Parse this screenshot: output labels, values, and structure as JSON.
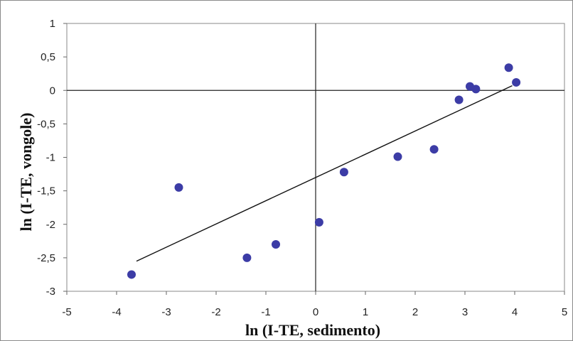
{
  "chart_data": {
    "type": "scatter",
    "title": "",
    "xlabel": "ln (I-TE, sedimento)",
    "ylabel": "ln (I-TE, vongole)",
    "xlim": [
      -5,
      5
    ],
    "ylim": [
      -3,
      1
    ],
    "x_ticks": [
      "-5",
      "-4",
      "-3",
      "-2",
      "-1",
      "0",
      "1",
      "2",
      "3",
      "4",
      "5"
    ],
    "y_ticks": [
      "1",
      "0,5",
      "0",
      "-0,5",
      "-1",
      "-1,5",
      "-2",
      "-2,5",
      "-3"
    ],
    "grid": false,
    "legend": "none",
    "point_color": "#3c3ca6",
    "points": [
      {
        "x": -3.7,
        "y": -2.75
      },
      {
        "x": -2.75,
        "y": -1.45
      },
      {
        "x": -1.38,
        "y": -2.5
      },
      {
        "x": -0.8,
        "y": -2.3
      },
      {
        "x": 0.07,
        "y": -1.97
      },
      {
        "x": 0.57,
        "y": -1.22
      },
      {
        "x": 1.65,
        "y": -0.99
      },
      {
        "x": 2.38,
        "y": -0.88
      },
      {
        "x": 2.88,
        "y": -0.14
      },
      {
        "x": 3.1,
        "y": 0.06
      },
      {
        "x": 3.22,
        "y": 0.02
      },
      {
        "x": 3.88,
        "y": 0.34
      },
      {
        "x": 4.03,
        "y": 0.12
      }
    ],
    "trendline": {
      "x": [
        -3.6,
        3.95
      ],
      "y": [
        -2.55,
        0.07
      ]
    }
  }
}
